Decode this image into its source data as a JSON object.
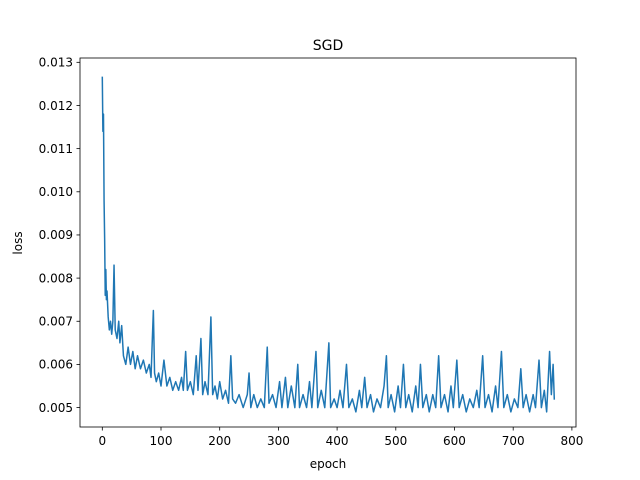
{
  "chart_data": {
    "type": "line",
    "title": "SGD",
    "xlabel": "epoch",
    "ylabel": "loss",
    "xlim": [
      -38,
      807
    ],
    "ylim": [
      0.00455,
      0.0131
    ],
    "x_ticks": [
      0,
      100,
      200,
      300,
      400,
      500,
      600,
      700,
      800
    ],
    "y_ticks": [
      0.005,
      0.006,
      0.007,
      0.008,
      0.009,
      0.01,
      0.011,
      0.012,
      0.013
    ],
    "x_tick_labels": [
      "0",
      "100",
      "200",
      "300",
      "400",
      "500",
      "600",
      "700",
      "800"
    ],
    "y_tick_labels": [
      "0.005",
      "0.006",
      "0.007",
      "0.008",
      "0.009",
      "0.010",
      "0.011",
      "0.012",
      "0.013"
    ],
    "grid": false,
    "legend": "none",
    "series_color": "#1f77b4",
    "series": [
      {
        "points": [
          [
            0,
            0.01265
          ],
          [
            1,
            0.0114
          ],
          [
            2,
            0.0118
          ],
          [
            3,
            0.0098
          ],
          [
            4,
            0.0089
          ],
          [
            5,
            0.0076
          ],
          [
            6,
            0.0082
          ],
          [
            7,
            0.0075
          ],
          [
            8,
            0.0077
          ],
          [
            10,
            0.0071
          ],
          [
            12,
            0.0068
          ],
          [
            14,
            0.007
          ],
          [
            16,
            0.0067
          ],
          [
            18,
            0.007
          ],
          [
            20,
            0.0083
          ],
          [
            22,
            0.0068
          ],
          [
            25,
            0.0066
          ],
          [
            28,
            0.007
          ],
          [
            30,
            0.0065
          ],
          [
            33,
            0.0069
          ],
          [
            36,
            0.0062
          ],
          [
            40,
            0.006
          ],
          [
            44,
            0.0064
          ],
          [
            48,
            0.006
          ],
          [
            52,
            0.0063
          ],
          [
            56,
            0.0059
          ],
          [
            60,
            0.0062
          ],
          [
            65,
            0.0059
          ],
          [
            70,
            0.0061
          ],
          [
            75,
            0.0058
          ],
          [
            80,
            0.006
          ],
          [
            83,
            0.0057
          ],
          [
            85,
            0.0065
          ],
          [
            87,
            0.00725
          ],
          [
            89,
            0.0058
          ],
          [
            92,
            0.0056
          ],
          [
            96,
            0.0058
          ],
          [
            100,
            0.0055
          ],
          [
            105,
            0.0061
          ],
          [
            110,
            0.0055
          ],
          [
            115,
            0.0057
          ],
          [
            120,
            0.0054
          ],
          [
            125,
            0.0056
          ],
          [
            130,
            0.0054
          ],
          [
            135,
            0.0057
          ],
          [
            138,
            0.0054
          ],
          [
            142,
            0.0063
          ],
          [
            145,
            0.0054
          ],
          [
            150,
            0.0056
          ],
          [
            155,
            0.0053
          ],
          [
            160,
            0.0062
          ],
          [
            163,
            0.0054
          ],
          [
            168,
            0.0066
          ],
          [
            171,
            0.0053
          ],
          [
            175,
            0.0056
          ],
          [
            180,
            0.0053
          ],
          [
            185,
            0.0071
          ],
          [
            188,
            0.0053
          ],
          [
            192,
            0.0055
          ],
          [
            196,
            0.0052
          ],
          [
            200,
            0.0056
          ],
          [
            205,
            0.0052
          ],
          [
            210,
            0.0054
          ],
          [
            215,
            0.0051
          ],
          [
            219,
            0.0062
          ],
          [
            222,
            0.0052
          ],
          [
            227,
            0.0051
          ],
          [
            233,
            0.0053
          ],
          [
            240,
            0.005
          ],
          [
            247,
            0.0053
          ],
          [
            250,
            0.0058
          ],
          [
            253,
            0.005
          ],
          [
            258,
            0.0053
          ],
          [
            264,
            0.005
          ],
          [
            270,
            0.0052
          ],
          [
            276,
            0.005
          ],
          [
            281,
            0.0064
          ],
          [
            284,
            0.0051
          ],
          [
            290,
            0.0053
          ],
          [
            296,
            0.005
          ],
          [
            302,
            0.0056
          ],
          [
            306,
            0.005
          ],
          [
            312,
            0.0057
          ],
          [
            316,
            0.005
          ],
          [
            322,
            0.0055
          ],
          [
            328,
            0.005
          ],
          [
            333,
            0.006
          ],
          [
            336,
            0.005
          ],
          [
            342,
            0.0053
          ],
          [
            348,
            0.005
          ],
          [
            353,
            0.0056
          ],
          [
            357,
            0.005
          ],
          [
            364,
            0.0063
          ],
          [
            367,
            0.005
          ],
          [
            373,
            0.0054
          ],
          [
            379,
            0.005
          ],
          [
            386,
            0.0065
          ],
          [
            389,
            0.005
          ],
          [
            395,
            0.0052
          ],
          [
            400,
            0.005
          ],
          [
            405,
            0.0054
          ],
          [
            410,
            0.005
          ],
          [
            416,
            0.006
          ],
          [
            420,
            0.005
          ],
          [
            426,
            0.0052
          ],
          [
            432,
            0.0049
          ],
          [
            438,
            0.0054
          ],
          [
            442,
            0.005
          ],
          [
            447,
            0.0057
          ],
          [
            451,
            0.005
          ],
          [
            457,
            0.0053
          ],
          [
            462,
            0.0049
          ],
          [
            468,
            0.0052
          ],
          [
            474,
            0.005
          ],
          [
            480,
            0.0055
          ],
          [
            484,
            0.0062
          ],
          [
            487,
            0.005
          ],
          [
            492,
            0.0053
          ],
          [
            498,
            0.0049
          ],
          [
            504,
            0.0055
          ],
          [
            508,
            0.005
          ],
          [
            513,
            0.006
          ],
          [
            517,
            0.005
          ],
          [
            522,
            0.0053
          ],
          [
            528,
            0.0049
          ],
          [
            534,
            0.0055
          ],
          [
            538,
            0.005
          ],
          [
            542,
            0.006
          ],
          [
            546,
            0.005
          ],
          [
            552,
            0.0053
          ],
          [
            557,
            0.0049
          ],
          [
            563,
            0.0053
          ],
          [
            568,
            0.005
          ],
          [
            573,
            0.0062
          ],
          [
            577,
            0.005
          ],
          [
            583,
            0.0053
          ],
          [
            589,
            0.0049
          ],
          [
            594,
            0.0055
          ],
          [
            598,
            0.005
          ],
          [
            604,
            0.0061
          ],
          [
            608,
            0.005
          ],
          [
            614,
            0.0053
          ],
          [
            620,
            0.0049
          ],
          [
            626,
            0.0052
          ],
          [
            632,
            0.005
          ],
          [
            638,
            0.0054
          ],
          [
            642,
            0.005
          ],
          [
            648,
            0.0062
          ],
          [
            652,
            0.005
          ],
          [
            658,
            0.0053
          ],
          [
            664,
            0.0049
          ],
          [
            670,
            0.0055
          ],
          [
            674,
            0.005
          ],
          [
            680,
            0.0063
          ],
          [
            684,
            0.005
          ],
          [
            690,
            0.0053
          ],
          [
            696,
            0.0049
          ],
          [
            702,
            0.0052
          ],
          [
            708,
            0.005
          ],
          [
            713,
            0.0059
          ],
          [
            717,
            0.005
          ],
          [
            722,
            0.0053
          ],
          [
            728,
            0.0049
          ],
          [
            734,
            0.0053
          ],
          [
            738,
            0.005
          ],
          [
            744,
            0.0061
          ],
          [
            748,
            0.005
          ],
          [
            753,
            0.0054
          ],
          [
            757,
            0.0049
          ],
          [
            762,
            0.0063
          ],
          [
            765,
            0.0053
          ],
          [
            768,
            0.006
          ],
          [
            770,
            0.0052
          ]
        ]
      }
    ]
  }
}
